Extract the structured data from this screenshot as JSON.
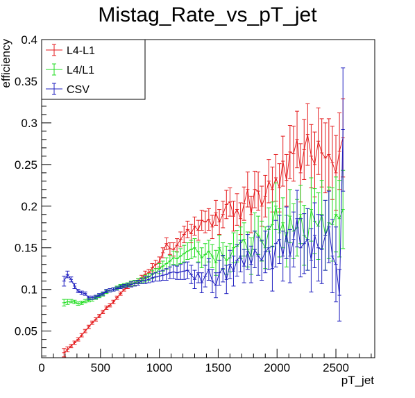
{
  "chart_data": {
    "type": "line",
    "title": "Mistag_Rate_vs_pT_jet",
    "xlabel": "pT_jet",
    "ylabel": "efficiency",
    "xlim": [
      0,
      2830
    ],
    "ylim": [
      0.018,
      0.4
    ],
    "x_ticks": [
      0,
      500,
      1000,
      1500,
      2000,
      2500
    ],
    "y_ticks": [
      0.05,
      0.1,
      0.15,
      0.2,
      0.25,
      0.3,
      0.35,
      0.4
    ],
    "x_tick_labels": [
      "0",
      "500",
      "1000",
      "1500",
      "2000",
      "2500"
    ],
    "y_tick_labels": [
      "0.05",
      "0.1",
      "0.15",
      "0.2",
      "0.25",
      "0.3",
      "0.35",
      "0.4"
    ],
    "grid": false,
    "legend_position": "top-left",
    "series": [
      {
        "name": "L4-L1",
        "color": "#e41a1c",
        "x": [
          190,
          220,
          250,
          280,
          310,
          340,
          370,
          400,
          430,
          460,
          490,
          520,
          550,
          580,
          610,
          640,
          670,
          700,
          730,
          760,
          790,
          820,
          850,
          880,
          910,
          940,
          970,
          1000,
          1030,
          1060,
          1090,
          1120,
          1150,
          1180,
          1210,
          1240,
          1270,
          1300,
          1330,
          1360,
          1390,
          1420,
          1450,
          1480,
          1510,
          1540,
          1570,
          1600,
          1630,
          1660,
          1690,
          1720,
          1750,
          1780,
          1810,
          1840,
          1870,
          1900,
          1930,
          1960,
          1990,
          2020,
          2050,
          2080,
          2110,
          2140,
          2170,
          2200,
          2230,
          2260,
          2290,
          2320,
          2350,
          2380,
          2410,
          2440,
          2470,
          2500,
          2530,
          2560
        ],
        "y": [
          0.024,
          0.028,
          0.032,
          0.036,
          0.04,
          0.045,
          0.05,
          0.055,
          0.06,
          0.064,
          0.068,
          0.073,
          0.078,
          0.081,
          0.085,
          0.09,
          0.095,
          0.1,
          0.103,
          0.106,
          0.108,
          0.11,
          0.114,
          0.118,
          0.12,
          0.126,
          0.13,
          0.133,
          0.144,
          0.155,
          0.149,
          0.148,
          0.153,
          0.16,
          0.166,
          0.172,
          0.167,
          0.176,
          0.171,
          0.183,
          0.181,
          0.184,
          0.175,
          0.192,
          0.181,
          0.19,
          0.202,
          0.205,
          0.188,
          0.196,
          0.185,
          0.203,
          0.22,
          0.19,
          0.22,
          0.218,
          0.2,
          0.212,
          0.23,
          0.22,
          0.234,
          0.222,
          0.254,
          0.231,
          0.265,
          0.263,
          0.28,
          0.24,
          0.268,
          0.286,
          0.26,
          0.25,
          0.278,
          0.264,
          0.258,
          0.262,
          0.252,
          0.24,
          0.266,
          0.282
        ],
        "err": [
          0.005,
          0.003,
          0.002,
          0.002,
          0.002,
          0.002,
          0.002,
          0.002,
          0.002,
          0.002,
          0.002,
          0.002,
          0.002,
          0.002,
          0.002,
          0.002,
          0.002,
          0.002,
          0.002,
          0.003,
          0.003,
          0.003,
          0.003,
          0.004,
          0.004,
          0.005,
          0.005,
          0.006,
          0.006,
          0.007,
          0.007,
          0.008,
          0.008,
          0.009,
          0.01,
          0.01,
          0.011,
          0.011,
          0.012,
          0.012,
          0.013,
          0.013,
          0.014,
          0.015,
          0.015,
          0.016,
          0.017,
          0.017,
          0.018,
          0.019,
          0.019,
          0.02,
          0.021,
          0.022,
          0.022,
          0.023,
          0.024,
          0.025,
          0.026,
          0.027,
          0.028,
          0.029,
          0.03,
          0.031,
          0.032,
          0.033,
          0.034,
          0.035,
          0.036,
          0.037,
          0.038,
          0.039,
          0.04,
          0.041,
          0.042,
          0.043,
          0.044,
          0.045,
          0.046,
          0.047
        ]
      },
      {
        "name": "L4/L1",
        "color": "#22dd22",
        "x": [
          190,
          220,
          250,
          280,
          310,
          340,
          370,
          400,
          430,
          460,
          490,
          520,
          550,
          580,
          610,
          640,
          670,
          700,
          730,
          760,
          790,
          820,
          850,
          880,
          910,
          940,
          970,
          1000,
          1030,
          1060,
          1090,
          1120,
          1150,
          1180,
          1210,
          1240,
          1270,
          1300,
          1330,
          1360,
          1390,
          1420,
          1450,
          1480,
          1510,
          1540,
          1570,
          1600,
          1630,
          1660,
          1690,
          1720,
          1750,
          1780,
          1810,
          1840,
          1870,
          1900,
          1930,
          1960,
          1990,
          2020,
          2050,
          2080,
          2110,
          2140,
          2170,
          2200,
          2230,
          2260,
          2290,
          2320,
          2350,
          2380,
          2410,
          2440,
          2470,
          2500,
          2530,
          2560
        ],
        "y": [
          0.084,
          0.085,
          0.086,
          0.085,
          0.083,
          0.084,
          0.086,
          0.087,
          0.088,
          0.09,
          0.092,
          0.094,
          0.097,
          0.099,
          0.1,
          0.102,
          0.104,
          0.105,
          0.106,
          0.107,
          0.108,
          0.11,
          0.111,
          0.113,
          0.115,
          0.118,
          0.12,
          0.125,
          0.128,
          0.131,
          0.134,
          0.138,
          0.137,
          0.14,
          0.143,
          0.146,
          0.148,
          0.15,
          0.145,
          0.138,
          0.142,
          0.146,
          0.14,
          0.132,
          0.15,
          0.14,
          0.135,
          0.138,
          0.15,
          0.152,
          0.156,
          0.16,
          0.148,
          0.14,
          0.17,
          0.165,
          0.158,
          0.15,
          0.172,
          0.178,
          0.2,
          0.168,
          0.18,
          0.158,
          0.188,
          0.17,
          0.174,
          0.19,
          0.165,
          0.16,
          0.196,
          0.182,
          0.176,
          0.19,
          0.165,
          0.18,
          0.178,
          0.19,
          0.185,
          0.196
        ],
        "err": [
          0.004,
          0.003,
          0.002,
          0.002,
          0.002,
          0.002,
          0.002,
          0.002,
          0.002,
          0.002,
          0.002,
          0.002,
          0.002,
          0.002,
          0.002,
          0.002,
          0.002,
          0.002,
          0.002,
          0.003,
          0.003,
          0.003,
          0.003,
          0.004,
          0.004,
          0.005,
          0.005,
          0.006,
          0.006,
          0.007,
          0.007,
          0.008,
          0.008,
          0.009,
          0.01,
          0.01,
          0.011,
          0.011,
          0.012,
          0.012,
          0.013,
          0.013,
          0.014,
          0.015,
          0.015,
          0.016,
          0.017,
          0.017,
          0.018,
          0.019,
          0.019,
          0.02,
          0.021,
          0.022,
          0.022,
          0.023,
          0.024,
          0.025,
          0.026,
          0.027,
          0.028,
          0.029,
          0.03,
          0.031,
          0.032,
          0.033,
          0.034,
          0.035,
          0.036,
          0.037,
          0.038,
          0.039,
          0.04,
          0.041,
          0.042,
          0.043,
          0.044,
          0.045,
          0.046,
          0.047
        ]
      },
      {
        "name": "CSV",
        "color": "#1f1fbf",
        "x": [
          190,
          220,
          250,
          280,
          310,
          340,
          370,
          400,
          430,
          460,
          490,
          520,
          550,
          580,
          610,
          640,
          670,
          700,
          730,
          760,
          790,
          820,
          850,
          880,
          910,
          940,
          970,
          1000,
          1030,
          1060,
          1090,
          1120,
          1150,
          1180,
          1210,
          1240,
          1270,
          1300,
          1330,
          1360,
          1390,
          1420,
          1450,
          1480,
          1510,
          1540,
          1570,
          1600,
          1630,
          1660,
          1690,
          1720,
          1750,
          1780,
          1810,
          1840,
          1870,
          1900,
          1930,
          1960,
          1990,
          2020,
          2050,
          2080,
          2110,
          2140,
          2170,
          2200,
          2230,
          2260,
          2290,
          2320,
          2350,
          2380,
          2410,
          2440,
          2470,
          2500,
          2530,
          2560
        ],
        "y": [
          0.11,
          0.118,
          0.112,
          0.104,
          0.098,
          0.096,
          0.095,
          0.09,
          0.09,
          0.091,
          0.093,
          0.095,
          0.098,
          0.099,
          0.1,
          0.101,
          0.103,
          0.104,
          0.105,
          0.106,
          0.107,
          0.108,
          0.11,
          0.111,
          0.112,
          0.114,
          0.115,
          0.116,
          0.117,
          0.118,
          0.12,
          0.121,
          0.12,
          0.121,
          0.122,
          0.123,
          0.118,
          0.112,
          0.12,
          0.108,
          0.116,
          0.124,
          0.11,
          0.105,
          0.12,
          0.125,
          0.112,
          0.13,
          0.122,
          0.135,
          0.14,
          0.128,
          0.145,
          0.13,
          0.148,
          0.14,
          0.135,
          0.145,
          0.15,
          0.125,
          0.155,
          0.16,
          0.14,
          0.168,
          0.14,
          0.16,
          0.185,
          0.15,
          0.155,
          0.16,
          0.135,
          0.165,
          0.15,
          0.148,
          0.165,
          0.175,
          0.14,
          0.13,
          0.093,
          0.292
        ],
        "err": [
          0.006,
          0.004,
          0.003,
          0.003,
          0.002,
          0.002,
          0.002,
          0.002,
          0.002,
          0.002,
          0.002,
          0.002,
          0.002,
          0.002,
          0.002,
          0.002,
          0.002,
          0.002,
          0.002,
          0.003,
          0.003,
          0.003,
          0.003,
          0.004,
          0.004,
          0.005,
          0.005,
          0.006,
          0.006,
          0.007,
          0.007,
          0.008,
          0.008,
          0.009,
          0.01,
          0.01,
          0.011,
          0.011,
          0.012,
          0.012,
          0.013,
          0.013,
          0.014,
          0.015,
          0.015,
          0.016,
          0.017,
          0.017,
          0.018,
          0.019,
          0.019,
          0.02,
          0.021,
          0.022,
          0.022,
          0.023,
          0.024,
          0.025,
          0.026,
          0.027,
          0.028,
          0.029,
          0.03,
          0.031,
          0.032,
          0.033,
          0.034,
          0.035,
          0.036,
          0.037,
          0.038,
          0.039,
          0.04,
          0.041,
          0.042,
          0.043,
          0.044,
          0.045,
          0.031,
          0.074
        ]
      }
    ]
  }
}
